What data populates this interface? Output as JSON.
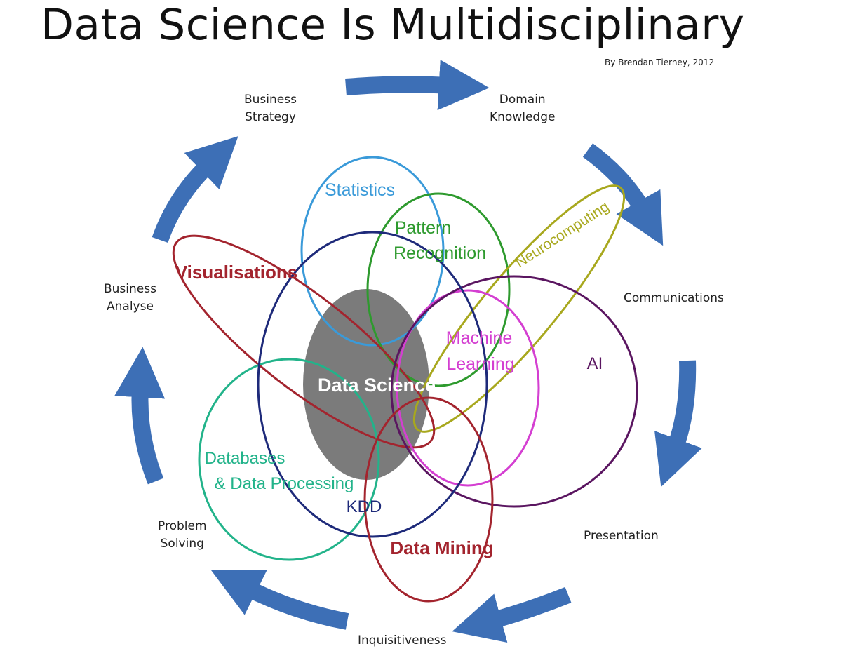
{
  "title": "Data Science Is Multidisciplinary",
  "credit": "By Brendan Tierney, 2012",
  "outer_labels": {
    "business_strategy": "Business\nStrategy",
    "domain_knowledge": "Domain\nKnowledge",
    "communications": "Communications",
    "presentation": "Presentation",
    "inquisitiveness": "Inquisitiveness",
    "problem_solving": "Problem\nSolving",
    "business_analyse": "Business\nAnalyse"
  },
  "fields": {
    "statistics": "Statistics",
    "pattern_line1": "Pattern",
    "pattern_line2": "Recognition",
    "neurocomputing": "Neurocomputing",
    "visualisations": "Visualisations",
    "machine_line1": "Machine",
    "machine_line2": "Learning",
    "ai": "AI",
    "databases_line1": "Databases",
    "databases_line2": "& Data Processing",
    "kdd": "KDD",
    "data_mining": "Data Mining",
    "data_science": "Data Science"
  },
  "colors": {
    "arrow": "#3d6fb6",
    "statistics": "#3a9ad9",
    "pattern_recognition": "#2e9a2e",
    "neurocomputing": "#a8a81e",
    "visualisations": "#a3242e",
    "machine_learning": "#d43fd1",
    "ai": "#5a1560",
    "databases": "#22b38a",
    "kdd": "#1e2a7a",
    "data_mining": "#a3242e",
    "data_science": "#7b7b7b"
  }
}
